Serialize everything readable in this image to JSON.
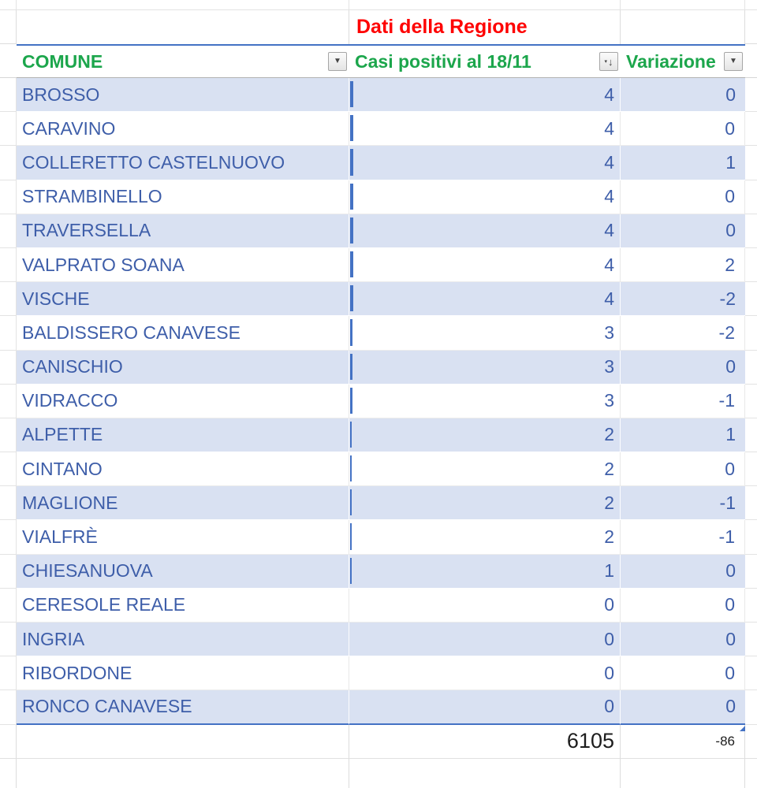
{
  "title": "Dati della Regione",
  "table": {
    "columns": [
      {
        "label": "COMUNE",
        "filter_icon": "filter-dropdown-arrow"
      },
      {
        "label": "Casi positivi al 18/11",
        "filter_icon": "sort-descending-filter"
      },
      {
        "label": "Variazione",
        "filter_icon": "filter-dropdown-arrow"
      }
    ],
    "rows": [
      {
        "comune": "BROSSO",
        "casi": 4,
        "variazione": 0
      },
      {
        "comune": "CARAVINO",
        "casi": 4,
        "variazione": 0
      },
      {
        "comune": "COLLERETTO CASTELNUOVO",
        "casi": 4,
        "variazione": 1
      },
      {
        "comune": "STRAMBINELLO",
        "casi": 4,
        "variazione": 0
      },
      {
        "comune": "TRAVERSELLA",
        "casi": 4,
        "variazione": 0
      },
      {
        "comune": "VALPRATO SOANA",
        "casi": 4,
        "variazione": 2
      },
      {
        "comune": "VISCHE",
        "casi": 4,
        "variazione": -2
      },
      {
        "comune": "BALDISSERO CANAVESE",
        "casi": 3,
        "variazione": -2
      },
      {
        "comune": "CANISCHIO",
        "casi": 3,
        "variazione": 0
      },
      {
        "comune": "VIDRACCO",
        "casi": 3,
        "variazione": -1
      },
      {
        "comune": "ALPETTE",
        "casi": 2,
        "variazione": 1
      },
      {
        "comune": "CINTANO",
        "casi": 2,
        "variazione": 0
      },
      {
        "comune": "MAGLIONE",
        "casi": 2,
        "variazione": -1
      },
      {
        "comune": "VIALFRÈ",
        "casi": 2,
        "variazione": -1
      },
      {
        "comune": "CHIESANUOVA",
        "casi": 1,
        "variazione": 0
      },
      {
        "comune": "CERESOLE REALE",
        "casi": 0,
        "variazione": 0
      },
      {
        "comune": "INGRIA",
        "casi": 0,
        "variazione": 0
      },
      {
        "comune": "RIBORDONE",
        "casi": 0,
        "variazione": 0
      },
      {
        "comune": "RONCO CANAVESE",
        "casi": 0,
        "variazione": 0
      }
    ],
    "totals": {
      "casi": "6105",
      "variazione": "-86"
    }
  },
  "colors": {
    "title_red": "#FE0000",
    "header_green": "#1CA64C",
    "row_text_blue": "#3E5EA9",
    "band_fill": "#D9E1F2",
    "table_border_blue": "#4472C4",
    "databar_blue": "#4472C4",
    "total_text": "#1D1D1D"
  }
}
